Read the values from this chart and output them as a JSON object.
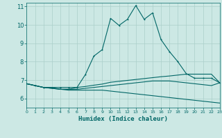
{
  "xlabel": "Humidex (Indice chaleur)",
  "background_color": "#cce8e4",
  "grid_color": "#aacfca",
  "line_color": "#006666",
  "xlim": [
    0,
    23
  ],
  "ylim": [
    5.5,
    11.2
  ],
  "yticks": [
    6,
    7,
    8,
    9,
    10,
    11
  ],
  "xticks": [
    0,
    1,
    2,
    3,
    4,
    5,
    6,
    7,
    8,
    9,
    10,
    11,
    12,
    13,
    14,
    15,
    16,
    17,
    18,
    19,
    20,
    21,
    22,
    23
  ],
  "line1_x": [
    0,
    1,
    2,
    3,
    4,
    5,
    6,
    7,
    8,
    9,
    10,
    11,
    12,
    13,
    14,
    15,
    16,
    17,
    18,
    19,
    20,
    21,
    22,
    23
  ],
  "line1_y": [
    6.8,
    6.7,
    6.6,
    6.6,
    6.6,
    6.6,
    6.6,
    7.3,
    8.3,
    8.65,
    10.35,
    9.97,
    10.3,
    11.05,
    10.3,
    10.65,
    9.2,
    8.55,
    8.0,
    7.35,
    7.1,
    7.1,
    7.1,
    6.85
  ],
  "line2_x": [
    0,
    1,
    2,
    3,
    4,
    5,
    6,
    7,
    8,
    9,
    10,
    11,
    12,
    13,
    14,
    15,
    16,
    17,
    18,
    19,
    20,
    21,
    22,
    23
  ],
  "line2_y": [
    6.8,
    6.7,
    6.6,
    6.6,
    6.5,
    6.5,
    6.6,
    6.65,
    6.72,
    6.78,
    6.88,
    6.93,
    6.98,
    7.03,
    7.08,
    7.13,
    7.18,
    7.22,
    7.27,
    7.32,
    7.32,
    7.32,
    7.32,
    6.85
  ],
  "line3_x": [
    0,
    1,
    2,
    3,
    4,
    5,
    6,
    7,
    8,
    9,
    10,
    11,
    12,
    13,
    14,
    15,
    16,
    17,
    18,
    19,
    20,
    21,
    22,
    23
  ],
  "line3_y": [
    6.8,
    6.7,
    6.6,
    6.55,
    6.5,
    6.5,
    6.5,
    6.55,
    6.6,
    6.65,
    6.7,
    6.75,
    6.8,
    6.85,
    6.9,
    6.95,
    6.95,
    6.95,
    6.9,
    6.85,
    6.8,
    6.75,
    6.7,
    6.85
  ],
  "line4_x": [
    0,
    1,
    2,
    3,
    4,
    5,
    6,
    7,
    8,
    9,
    10,
    11,
    12,
    13,
    14,
    15,
    16,
    17,
    18,
    19,
    20,
    21,
    22,
    23
  ],
  "line4_y": [
    6.8,
    6.7,
    6.6,
    6.55,
    6.5,
    6.45,
    6.45,
    6.45,
    6.45,
    6.45,
    6.4,
    6.35,
    6.3,
    6.25,
    6.2,
    6.15,
    6.1,
    6.05,
    6.0,
    5.95,
    5.9,
    5.85,
    5.8,
    5.75
  ]
}
